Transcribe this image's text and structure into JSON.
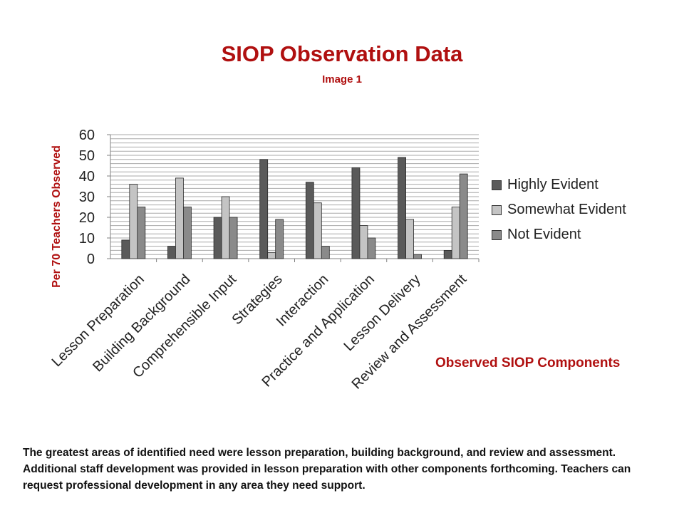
{
  "colors": {
    "accent": "#b01010",
    "highly": "#5a5a5a",
    "somewhat": "#c4c4c4",
    "not": "#8a8a8a"
  },
  "footnote": "The greatest areas of identified need were lesson preparation, building background, and review and assessment. Additional staff development was provided in lesson preparation with other components forthcoming.  Teachers can request professional development in any area they need support.",
  "chart_data": {
    "type": "bar",
    "title": "SIOP Observation Data",
    "subtitle": "Image 1",
    "ylabel": "Per 70 Teachers Observed",
    "xlabel": "Observed SIOP Components",
    "ylim": [
      0,
      60
    ],
    "yticks": [
      0,
      10,
      20,
      30,
      40,
      50,
      60
    ],
    "grid": true,
    "legend_position": "right",
    "categories": [
      "Lesson Preparation",
      "Building Background",
      "Comprehensible Input",
      "Strategies",
      "Interaction",
      "Practice and Application",
      "Lesson Delivery",
      "Review and Assessment"
    ],
    "series": [
      {
        "name": "Highly Evident",
        "values": [
          9,
          6,
          20,
          48,
          37,
          44,
          49,
          4
        ]
      },
      {
        "name": "Somewhat Evident",
        "values": [
          36,
          39,
          30,
          3,
          27,
          16,
          19,
          25
        ]
      },
      {
        "name": "Not Evident",
        "values": [
          25,
          25,
          20,
          19,
          6,
          10,
          2,
          41
        ]
      }
    ]
  }
}
